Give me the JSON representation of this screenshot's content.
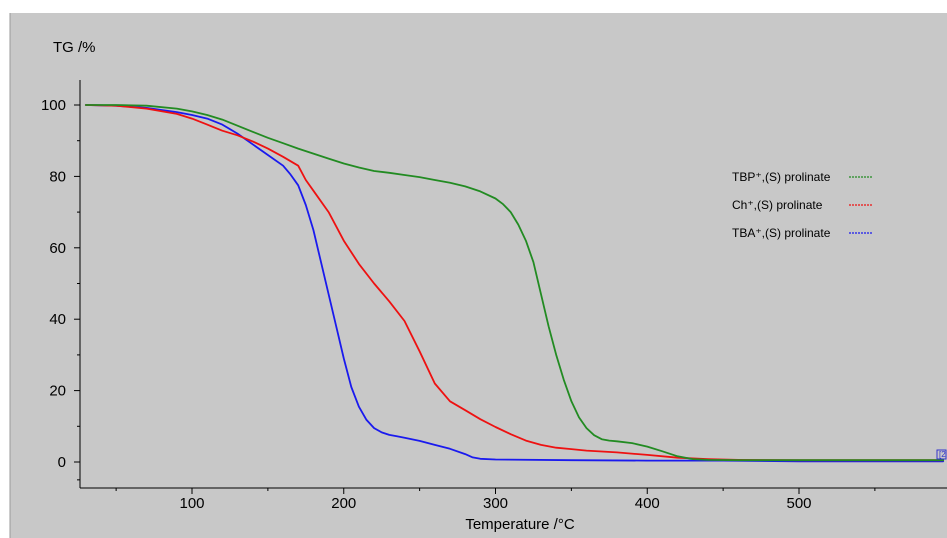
{
  "chart_data": {
    "type": "line",
    "title": "",
    "ylabel": "TG /%",
    "xlabel": "Temperature /°C",
    "xlim": [
      30,
      595
    ],
    "ylim": [
      -7,
      107
    ],
    "xticks": [
      100,
      200,
      300,
      400,
      500
    ],
    "xtick_labels": [
      "100",
      "200",
      "300",
      "400",
      "500"
    ],
    "yticks": [
      0,
      20,
      40,
      60,
      80,
      100
    ],
    "ytick_labels": [
      "0",
      "20",
      "40",
      "60",
      "80",
      "100"
    ],
    "grid": false,
    "background": "#c8c8c8",
    "legend_position": "right",
    "series": [
      {
        "name": "TBP⁺,(S) prolinate",
        "color": "#228b22",
        "x": [
          30,
          50,
          70,
          90,
          100,
          110,
          120,
          130,
          140,
          150,
          160,
          170,
          180,
          190,
          200,
          210,
          220,
          230,
          240,
          250,
          260,
          270,
          280,
          290,
          300,
          305,
          310,
          315,
          320,
          325,
          330,
          335,
          340,
          345,
          350,
          355,
          360,
          365,
          370,
          375,
          380,
          390,
          400,
          410,
          420,
          430,
          440,
          460,
          500,
          540,
          595
        ],
        "values": [
          100,
          100,
          99.8,
          99,
          98.2,
          97.2,
          95.9,
          94.2,
          92.5,
          90.8,
          89.3,
          87.8,
          86.4,
          85,
          83.6,
          82.5,
          81.5,
          81,
          80.4,
          79.8,
          79,
          78.2,
          77.2,
          75.8,
          73.8,
          72.2,
          70,
          66.5,
          62,
          56,
          47,
          38,
          30,
          23,
          17,
          12.5,
          9.5,
          7.5,
          6.4,
          6,
          5.8,
          5.3,
          4.3,
          3,
          1.6,
          0.8,
          0.6,
          0.5,
          0.5,
          0.5,
          0.5
        ]
      },
      {
        "name": "Ch⁺,(S) prolinate",
        "color": "#ee1111",
        "x": [
          30,
          50,
          70,
          90,
          100,
          110,
          120,
          130,
          140,
          150,
          160,
          170,
          175,
          180,
          190,
          200,
          210,
          220,
          230,
          240,
          250,
          260,
          270,
          280,
          290,
          300,
          310,
          320,
          330,
          340,
          350,
          360,
          380,
          400,
          420,
          440,
          460,
          500,
          540,
          595
        ],
        "values": [
          100,
          99.8,
          99,
          97.5,
          96.2,
          94.5,
          92.8,
          91.5,
          89.8,
          87.8,
          85.5,
          83,
          79,
          76,
          70,
          62,
          55.5,
          50,
          45,
          39.5,
          31,
          22,
          17,
          14.5,
          12,
          9.8,
          7.8,
          6,
          4.8,
          4,
          3.6,
          3.2,
          2.7,
          2,
          1.2,
          0.8,
          0.6,
          0.5,
          0.5,
          0.5
        ]
      },
      {
        "name": "TBA⁺,(S) prolinate",
        "color": "#1a1aee",
        "x": [
          30,
          50,
          70,
          90,
          100,
          110,
          120,
          130,
          140,
          150,
          160,
          165,
          170,
          175,
          180,
          185,
          190,
          195,
          200,
          205,
          210,
          215,
          220,
          225,
          230,
          235,
          240,
          250,
          260,
          270,
          280,
          285,
          290,
          300,
          350,
          400,
          450,
          500,
          540,
          595
        ],
        "values": [
          100,
          99.8,
          99.2,
          98,
          97.2,
          96.2,
          94.5,
          92,
          89,
          86,
          83,
          80.5,
          77.5,
          72,
          65,
          56,
          47,
          38,
          29,
          21,
          15.5,
          11.8,
          9.5,
          8.3,
          7.6,
          7.2,
          6.8,
          5.9,
          4.8,
          3.7,
          2.2,
          1.3,
          0.9,
          0.7,
          0.5,
          0.4,
          0.4,
          0.2,
          0.2,
          0.2
        ]
      }
    ]
  },
  "corner_marker": "[2"
}
